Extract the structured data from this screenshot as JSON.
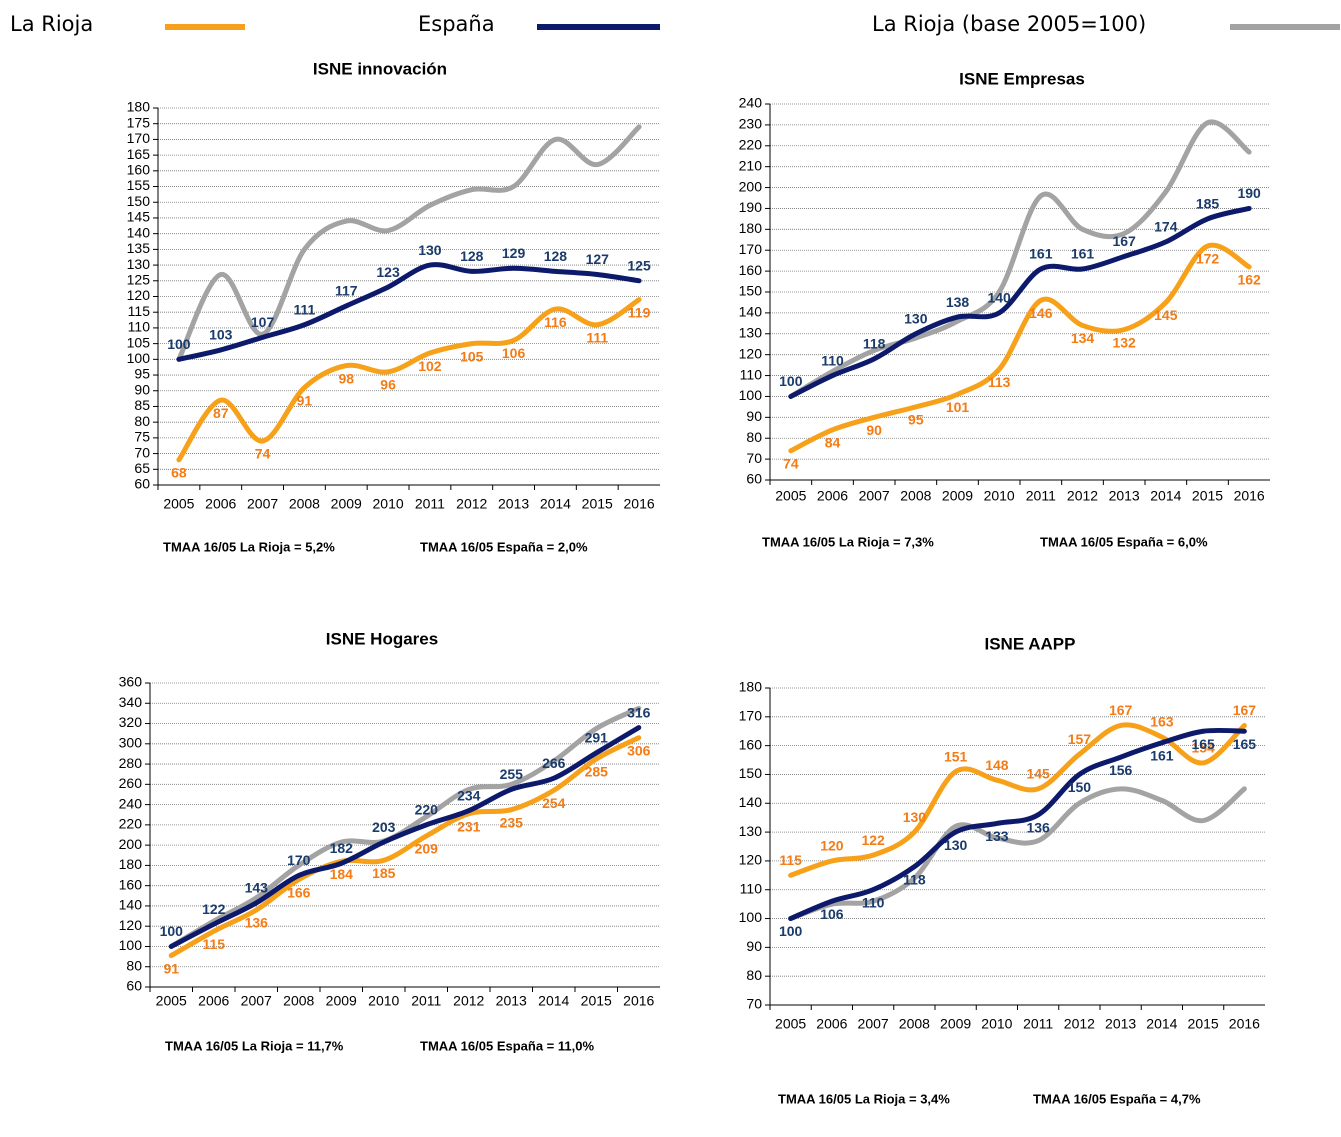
{
  "legend": [
    {
      "name": "La Rioja",
      "color": "#f7a11a"
    },
    {
      "name": "España",
      "color": "#0d1a6b"
    },
    {
      "name": "La Rioja (base 2005=100)",
      "color": "#a3a3a3"
    }
  ],
  "chart_data": [
    {
      "type": "line",
      "title": "ISNE innovación",
      "categories": [
        "2005",
        "2006",
        "2007",
        "2008",
        "2009",
        "2010",
        "2011",
        "2012",
        "2013",
        "2014",
        "2015",
        "2016"
      ],
      "series": [
        {
          "color": "#f7a11a",
          "values": [
            68,
            87,
            74,
            91,
            98,
            96,
            102,
            105,
            106,
            116,
            111,
            119
          ]
        },
        {
          "color": "#0d1a6b",
          "values": [
            100,
            103,
            107,
            111,
            117,
            123,
            130,
            128,
            129,
            128,
            127,
            125
          ]
        },
        {
          "color": "#a3a3a3",
          "values": [
            100,
            127,
            108,
            135,
            144,
            141,
            149,
            154,
            155,
            170,
            162,
            174
          ]
        }
      ],
      "ylim": [
        60,
        180
      ],
      "yticks": [
        60,
        65,
        70,
        75,
        80,
        85,
        90,
        95,
        100,
        105,
        110,
        115,
        120,
        125,
        130,
        135,
        140,
        145,
        150,
        155,
        160,
        165,
        170,
        175,
        180
      ],
      "grid": true,
      "notes": [
        "TMAA  16/05 La Rioja = 5,2%",
        "TMAA 16/05 España = 2,0%"
      ]
    },
    {
      "type": "line",
      "title": "ISNE Empresas",
      "categories": [
        "2005",
        "2006",
        "2007",
        "2008",
        "2009",
        "2010",
        "2011",
        "2012",
        "2013",
        "2014",
        "2015",
        "2016"
      ],
      "series": [
        {
          "color": "#f7a11a",
          "values": [
            74,
            84,
            90,
            95,
            101,
            113,
            146,
            134,
            132,
            145,
            172,
            162
          ]
        },
        {
          "color": "#0d1a6b",
          "values": [
            100,
            110,
            118,
            130,
            138,
            140,
            161,
            161,
            167,
            174,
            185,
            190
          ]
        },
        {
          "color": "#a3a3a3",
          "values": [
            100,
            112,
            122,
            128,
            136,
            150,
            196,
            180,
            178,
            198,
            231,
            217
          ]
        }
      ],
      "ylim": [
        60,
        240
      ],
      "yticks": [
        60,
        70,
        80,
        90,
        100,
        110,
        120,
        130,
        140,
        150,
        160,
        170,
        180,
        190,
        200,
        210,
        220,
        230,
        240
      ],
      "grid": true,
      "notes": [
        "TMAA 16/05 La Rioja = 7,3%",
        "TMAA 16/05 España = 6,0%"
      ]
    },
    {
      "type": "line",
      "title": "ISNE Hogares",
      "categories": [
        "2005",
        "2006",
        "2007",
        "2008",
        "2009",
        "2010",
        "2011",
        "2012",
        "2013",
        "2014",
        "2015",
        "2016"
      ],
      "series": [
        {
          "color": "#f7a11a",
          "values": [
            91,
            115,
            136,
            166,
            184,
            185,
            209,
            231,
            235,
            254,
            285,
            306
          ]
        },
        {
          "color": "#0d1a6b",
          "values": [
            100,
            122,
            143,
            170,
            182,
            203,
            220,
            234,
            255,
            266,
            291,
            316
          ]
        },
        {
          "color": "#a3a3a3",
          "values": [
            100,
            125,
            148,
            180,
            203,
            204,
            228,
            255,
            260,
            283,
            315,
            335
          ]
        }
      ],
      "ylim": [
        60,
        360
      ],
      "yticks": [
        60,
        80,
        100,
        120,
        140,
        160,
        180,
        200,
        220,
        240,
        260,
        280,
        300,
        320,
        340,
        360
      ],
      "grid": true,
      "notes": [
        "TMAA 16/05 La Rioja = 11,7%",
        "TMAA 16/05 España = 11,0%"
      ]
    },
    {
      "type": "line",
      "title": "ISNE AAPP",
      "categories": [
        "2005",
        "2006",
        "2007",
        "2008",
        "2009",
        "2010",
        "2011",
        "2012",
        "2013",
        "2014",
        "2015",
        "2016"
      ],
      "series": [
        {
          "color": "#f7a11a",
          "values": [
            115,
            120,
            122,
            130,
            151,
            148,
            145,
            157,
            167,
            163,
            154,
            167
          ]
        },
        {
          "color": "#0d1a6b",
          "values": [
            100,
            106,
            110,
            118,
            130,
            133,
            136,
            150,
            156,
            161,
            165,
            165
          ]
        },
        {
          "color": "#a3a3a3",
          "values": [
            100,
            105,
            106,
            114,
            132,
            128,
            127,
            140,
            145,
            141,
            134,
            145
          ]
        }
      ],
      "ylim": [
        70,
        180
      ],
      "yticks": [
        70,
        80,
        90,
        100,
        110,
        120,
        130,
        140,
        150,
        160,
        170,
        180
      ],
      "grid": true,
      "notes": [
        "TMAA 16/05 La Rioja = 3,4%",
        "TMAA 16/05 España = 4,7%"
      ]
    }
  ]
}
